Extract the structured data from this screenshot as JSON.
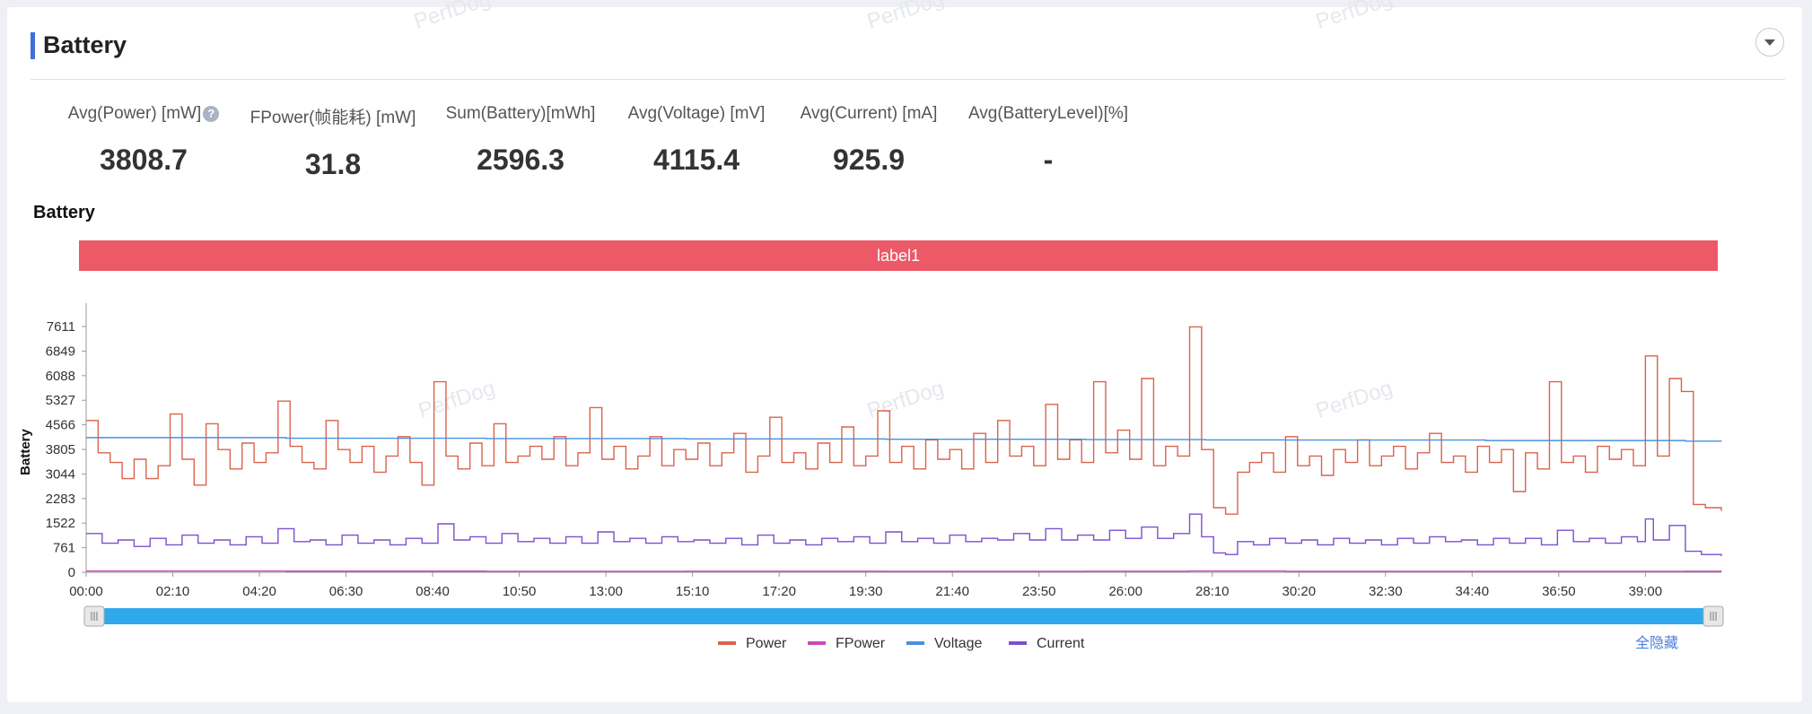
{
  "section": {
    "title": "Battery"
  },
  "metrics": [
    {
      "label": "Avg(Power) [mW]",
      "value": "3808.7",
      "has_help": true
    },
    {
      "label": "FPower(帧能耗) [mW]",
      "value": "31.8",
      "has_help": false
    },
    {
      "label": "Sum(Battery)[mWh]",
      "value": "2596.3",
      "has_help": false
    },
    {
      "label": "Avg(Voltage) [mV]",
      "value": "4115.4",
      "has_help": false
    },
    {
      "label": "Avg(Current) [mA]",
      "value": "925.9",
      "has_help": false
    },
    {
      "label": "Avg(BatteryLevel)[%]",
      "value": "-",
      "has_help": false
    }
  ],
  "watermark": "PerfDog",
  "chart_data": {
    "type": "line",
    "title": "Battery",
    "ylabel": "Battery",
    "xlabel": "",
    "label_band": "label1",
    "ylim": [
      0,
      7611
    ],
    "y_ticks": [
      "0",
      "761",
      "1522",
      "2283",
      "3044",
      "3805",
      "4566",
      "5327",
      "6088",
      "6849",
      "7611"
    ],
    "x_ticks": [
      "00:00",
      "02:10",
      "04:20",
      "06:30",
      "08:40",
      "10:50",
      "13:00",
      "15:10",
      "17:20",
      "19:30",
      "21:40",
      "23:50",
      "26:00",
      "28:10",
      "30:20",
      "32:30",
      "34:40",
      "36:50",
      "39:00"
    ],
    "x_range_minutes": [
      0,
      40.9
    ],
    "series": [
      {
        "name": "Power",
        "color": "#d9634c",
        "points": [
          [
            0,
            4700
          ],
          [
            0.3,
            3700
          ],
          [
            0.6,
            3400
          ],
          [
            0.9,
            2900
          ],
          [
            1.2,
            3500
          ],
          [
            1.5,
            2900
          ],
          [
            1.8,
            3300
          ],
          [
            2.1,
            4900
          ],
          [
            2.4,
            3500
          ],
          [
            2.7,
            2700
          ],
          [
            3.0,
            4600
          ],
          [
            3.3,
            3800
          ],
          [
            3.6,
            3200
          ],
          [
            3.9,
            4000
          ],
          [
            4.2,
            3400
          ],
          [
            4.5,
            3700
          ],
          [
            4.8,
            5300
          ],
          [
            5.1,
            3900
          ],
          [
            5.4,
            3400
          ],
          [
            5.7,
            3200
          ],
          [
            6.0,
            4700
          ],
          [
            6.3,
            3800
          ],
          [
            6.6,
            3400
          ],
          [
            6.9,
            3900
          ],
          [
            7.2,
            3100
          ],
          [
            7.5,
            3600
          ],
          [
            7.8,
            4200
          ],
          [
            8.1,
            3400
          ],
          [
            8.4,
            2700
          ],
          [
            8.7,
            5900
          ],
          [
            9.0,
            3600
          ],
          [
            9.3,
            3200
          ],
          [
            9.6,
            4000
          ],
          [
            9.9,
            3300
          ],
          [
            10.2,
            4600
          ],
          [
            10.5,
            3400
          ],
          [
            10.8,
            3600
          ],
          [
            11.1,
            3900
          ],
          [
            11.4,
            3500
          ],
          [
            11.7,
            4200
          ],
          [
            12.0,
            3300
          ],
          [
            12.3,
            3700
          ],
          [
            12.6,
            5100
          ],
          [
            12.9,
            3500
          ],
          [
            13.2,
            3900
          ],
          [
            13.5,
            3200
          ],
          [
            13.8,
            3600
          ],
          [
            14.1,
            4200
          ],
          [
            14.4,
            3300
          ],
          [
            14.7,
            3800
          ],
          [
            15.0,
            3500
          ],
          [
            15.3,
            4000
          ],
          [
            15.6,
            3300
          ],
          [
            15.9,
            3700
          ],
          [
            16.2,
            4300
          ],
          [
            16.5,
            3100
          ],
          [
            16.8,
            3600
          ],
          [
            17.1,
            4800
          ],
          [
            17.4,
            3400
          ],
          [
            17.7,
            3700
          ],
          [
            18.0,
            3200
          ],
          [
            18.3,
            4000
          ],
          [
            18.6,
            3400
          ],
          [
            18.9,
            4500
          ],
          [
            19.2,
            3300
          ],
          [
            19.5,
            3600
          ],
          [
            19.8,
            5000
          ],
          [
            20.1,
            3400
          ],
          [
            20.4,
            3900
          ],
          [
            20.7,
            3200
          ],
          [
            21.0,
            4100
          ],
          [
            21.3,
            3500
          ],
          [
            21.6,
            3800
          ],
          [
            21.9,
            3200
          ],
          [
            22.2,
            4300
          ],
          [
            22.5,
            3400
          ],
          [
            22.8,
            4700
          ],
          [
            23.1,
            3600
          ],
          [
            23.4,
            3900
          ],
          [
            23.7,
            3300
          ],
          [
            24.0,
            5200
          ],
          [
            24.3,
            3500
          ],
          [
            24.6,
            4100
          ],
          [
            24.9,
            3400
          ],
          [
            25.2,
            5900
          ],
          [
            25.5,
            3700
          ],
          [
            25.8,
            4400
          ],
          [
            26.1,
            3500
          ],
          [
            26.4,
            6000
          ],
          [
            26.7,
            3300
          ],
          [
            27.0,
            3900
          ],
          [
            27.3,
            3600
          ],
          [
            27.6,
            7600
          ],
          [
            27.9,
            3800
          ],
          [
            28.2,
            2000
          ],
          [
            28.5,
            1800
          ],
          [
            28.8,
            3100
          ],
          [
            29.1,
            3400
          ],
          [
            29.4,
            3700
          ],
          [
            29.7,
            3100
          ],
          [
            30.0,
            4200
          ],
          [
            30.3,
            3300
          ],
          [
            30.6,
            3600
          ],
          [
            30.9,
            3000
          ],
          [
            31.2,
            3800
          ],
          [
            31.5,
            3400
          ],
          [
            31.8,
            4100
          ],
          [
            32.1,
            3300
          ],
          [
            32.4,
            3600
          ],
          [
            32.7,
            3900
          ],
          [
            33.0,
            3200
          ],
          [
            33.3,
            3700
          ],
          [
            33.6,
            4300
          ],
          [
            33.9,
            3400
          ],
          [
            34.2,
            3600
          ],
          [
            34.5,
            3100
          ],
          [
            34.8,
            3900
          ],
          [
            35.1,
            3400
          ],
          [
            35.4,
            3800
          ],
          [
            35.7,
            2500
          ],
          [
            36.0,
            3700
          ],
          [
            36.3,
            3200
          ],
          [
            36.6,
            5900
          ],
          [
            36.9,
            3400
          ],
          [
            37.2,
            3600
          ],
          [
            37.5,
            3100
          ],
          [
            37.8,
            3900
          ],
          [
            38.1,
            3500
          ],
          [
            38.4,
            3800
          ],
          [
            38.7,
            3300
          ],
          [
            39.0,
            6700
          ],
          [
            39.3,
            3600
          ],
          [
            39.6,
            6000
          ],
          [
            39.9,
            5600
          ],
          [
            40.2,
            2100
          ],
          [
            40.5,
            2000
          ],
          [
            40.9,
            1900
          ]
        ]
      },
      {
        "name": "FPower",
        "color": "#c44db5",
        "points": [
          [
            0,
            40
          ],
          [
            5,
            35
          ],
          [
            10,
            30
          ],
          [
            15,
            32
          ],
          [
            20,
            28
          ],
          [
            25,
            33
          ],
          [
            27.6,
            40
          ],
          [
            30,
            30
          ],
          [
            35,
            29
          ],
          [
            40,
            31
          ],
          [
            40.9,
            28
          ]
        ]
      },
      {
        "name": "Voltage",
        "color": "#4a8fdf",
        "points": [
          [
            0,
            4170
          ],
          [
            5,
            4150
          ],
          [
            10,
            4140
          ],
          [
            15,
            4130
          ],
          [
            20,
            4120
          ],
          [
            25,
            4110
          ],
          [
            28,
            4100
          ],
          [
            30,
            4095
          ],
          [
            35,
            4080
          ],
          [
            40,
            4060
          ],
          [
            40.9,
            4055
          ]
        ]
      },
      {
        "name": "Current",
        "color": "#7d4fcf",
        "points": [
          [
            0,
            1200
          ],
          [
            0.4,
            900
          ],
          [
            0.8,
            1000
          ],
          [
            1.2,
            800
          ],
          [
            1.6,
            1050
          ],
          [
            2.0,
            850
          ],
          [
            2.4,
            1150
          ],
          [
            2.8,
            900
          ],
          [
            3.2,
            1000
          ],
          [
            3.6,
            850
          ],
          [
            4.0,
            1100
          ],
          [
            4.4,
            900
          ],
          [
            4.8,
            1350
          ],
          [
            5.2,
            950
          ],
          [
            5.6,
            1000
          ],
          [
            6.0,
            850
          ],
          [
            6.4,
            1150
          ],
          [
            6.8,
            900
          ],
          [
            7.2,
            1000
          ],
          [
            7.6,
            850
          ],
          [
            8.0,
            1050
          ],
          [
            8.4,
            900
          ],
          [
            8.8,
            1500
          ],
          [
            9.2,
            1000
          ],
          [
            9.6,
            1100
          ],
          [
            10.0,
            900
          ],
          [
            10.4,
            1200
          ],
          [
            10.8,
            950
          ],
          [
            11.2,
            1050
          ],
          [
            11.6,
            900
          ],
          [
            12.0,
            1100
          ],
          [
            12.4,
            900
          ],
          [
            12.8,
            1250
          ],
          [
            13.2,
            950
          ],
          [
            13.6,
            1050
          ],
          [
            14.0,
            900
          ],
          [
            14.4,
            1100
          ],
          [
            14.8,
            950
          ],
          [
            15.2,
            1000
          ],
          [
            15.6,
            900
          ],
          [
            16.0,
            1050
          ],
          [
            16.4,
            850
          ],
          [
            16.8,
            1150
          ],
          [
            17.2,
            900
          ],
          [
            17.6,
            1000
          ],
          [
            18.0,
            850
          ],
          [
            18.4,
            1050
          ],
          [
            18.8,
            950
          ],
          [
            19.2,
            1100
          ],
          [
            19.6,
            900
          ],
          [
            20.0,
            1250
          ],
          [
            20.4,
            950
          ],
          [
            20.8,
            1050
          ],
          [
            21.2,
            900
          ],
          [
            21.6,
            1150
          ],
          [
            22.0,
            950
          ],
          [
            22.4,
            1050
          ],
          [
            22.8,
            1000
          ],
          [
            23.2,
            1200
          ],
          [
            23.6,
            1000
          ],
          [
            24.0,
            1350
          ],
          [
            24.4,
            1000
          ],
          [
            24.8,
            1150
          ],
          [
            25.2,
            1000
          ],
          [
            25.6,
            1300
          ],
          [
            26.0,
            1050
          ],
          [
            26.4,
            1400
          ],
          [
            26.8,
            1050
          ],
          [
            27.2,
            1200
          ],
          [
            27.6,
            1800
          ],
          [
            27.9,
            1100
          ],
          [
            28.2,
            600
          ],
          [
            28.5,
            550
          ],
          [
            28.8,
            950
          ],
          [
            29.2,
            850
          ],
          [
            29.6,
            1050
          ],
          [
            30.0,
            900
          ],
          [
            30.4,
            1000
          ],
          [
            30.8,
            850
          ],
          [
            31.2,
            1050
          ],
          [
            31.6,
            900
          ],
          [
            32.0,
            1000
          ],
          [
            32.4,
            850
          ],
          [
            32.8,
            1050
          ],
          [
            33.2,
            900
          ],
          [
            33.6,
            1100
          ],
          [
            34.0,
            950
          ],
          [
            34.4,
            1000
          ],
          [
            34.8,
            850
          ],
          [
            35.2,
            1050
          ],
          [
            35.6,
            900
          ],
          [
            36.0,
            1050
          ],
          [
            36.4,
            850
          ],
          [
            36.8,
            1300
          ],
          [
            37.2,
            950
          ],
          [
            37.6,
            1050
          ],
          [
            38.0,
            900
          ],
          [
            38.4,
            1100
          ],
          [
            38.8,
            950
          ],
          [
            39.0,
            1650
          ],
          [
            39.2,
            1000
          ],
          [
            39.6,
            1450
          ],
          [
            40.0,
            650
          ],
          [
            40.4,
            550
          ],
          [
            40.9,
            500
          ]
        ]
      }
    ],
    "legend": [
      "Power",
      "FPower",
      "Voltage",
      "Current"
    ],
    "legend_placement": "bottom-center",
    "hide_all_label": "全隐藏",
    "grid": false
  }
}
